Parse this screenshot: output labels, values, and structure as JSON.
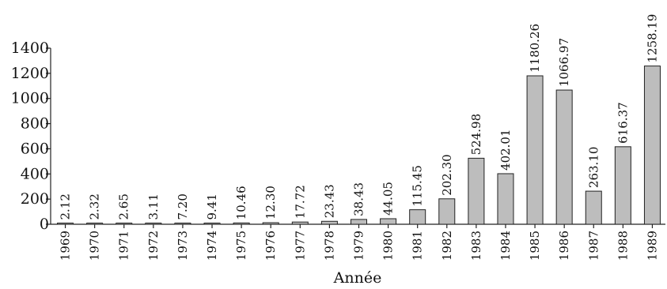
{
  "chart_data": {
    "type": "bar",
    "title": "",
    "xlabel": "Année",
    "ylabel": "",
    "ylim": [
      0,
      1400
    ],
    "yticks": [
      0,
      200,
      400,
      600,
      800,
      1000,
      1200,
      1400
    ],
    "categories": [
      "1969",
      "1970",
      "1971",
      "1972",
      "1973",
      "1974",
      "1975",
      "1976",
      "1977",
      "1978",
      "1979",
      "1980",
      "1981",
      "1982",
      "1983",
      "1984",
      "1985",
      "1986",
      "1987",
      "1988",
      "1989"
    ],
    "values": [
      2.12,
      2.32,
      2.65,
      3.11,
      7.2,
      9.41,
      10.46,
      12.3,
      17.72,
      23.43,
      38.43,
      44.05,
      115.45,
      202.3,
      524.98,
      402.01,
      1180.26,
      1066.97,
      263.1,
      616.37,
      1258.19
    ],
    "value_labels": [
      "2.12",
      "2.32",
      "2.65",
      "3.11",
      "7.20",
      "9.41",
      "10.46",
      "12.30",
      "17.72",
      "23.43",
      "38.43",
      "44.05",
      "115.45",
      "202.30",
      "524.98",
      "402.01",
      "1180.26",
      "1066.97",
      "263.10",
      "616.37",
      "1258.19"
    ],
    "bar_color": "#bdbdbd",
    "grid": false,
    "legend": "none"
  }
}
